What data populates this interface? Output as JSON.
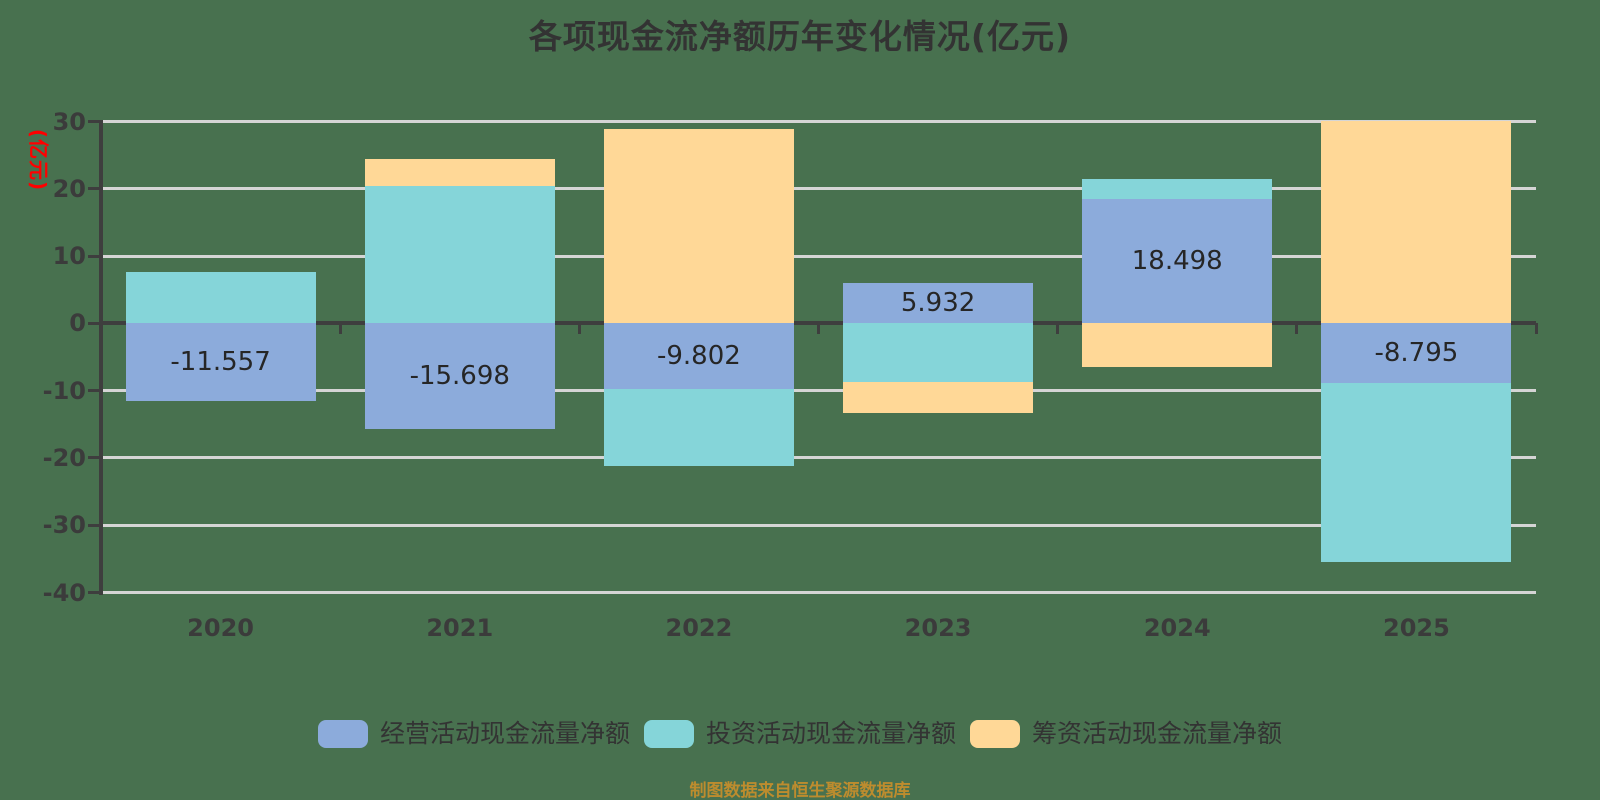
{
  "title": "各项现金流净额历年变化情况(亿元)",
  "y_axis_label": "(亿元)",
  "footer": "制图数据来自恒生聚源数据库",
  "colors": {
    "background": "#48714F",
    "operating": "#8CABDB",
    "investing": "#85D5D9",
    "financing": "#FFD897",
    "grid": "#D5D5D5",
    "axis": "#3E3E3E",
    "title_text": "#333333",
    "tick_text": "#3B3B3B",
    "value_text": "#262626",
    "unit_red": "#FF0000",
    "footer_gold": "#BD8C2E"
  },
  "chart_data": {
    "type": "bar",
    "stacked": true,
    "title": "各项现金流净额历年变化情况(亿元)",
    "xlabel": "",
    "ylabel": "(亿元)",
    "categories": [
      "2020",
      "2021",
      "2022",
      "2023",
      "2024",
      "2025"
    ],
    "series": [
      {
        "name": "经营活动现金流量净额",
        "color_key": "operating",
        "values": [
          -11.557,
          -15.698,
          -9.802,
          5.932,
          18.498,
          -8.795
        ],
        "labels": [
          "-11.557",
          "-15.698",
          "-9.802",
          "5.932",
          "18.498",
          "-8.795"
        ]
      },
      {
        "name": "投资活动现金流量净额",
        "color_key": "investing",
        "values": [
          7.6,
          20.4,
          -11.4,
          -8.7,
          2.9,
          -26.6
        ]
      },
      {
        "name": "筹资活动现金流量净额",
        "color_key": "financing",
        "values": [
          0,
          4.1,
          28.9,
          -4.6,
          -6.5,
          30.1
        ]
      }
    ],
    "yticks": [
      30,
      20,
      10,
      0,
      -10,
      -20,
      -30,
      -40
    ],
    "ylim": [
      -40,
      30
    ],
    "grid": true,
    "legend_position": "bottom"
  }
}
